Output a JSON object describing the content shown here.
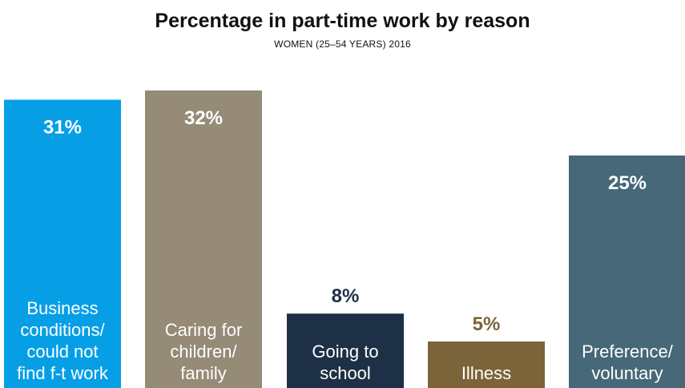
{
  "chart_data": {
    "type": "bar",
    "title": "Percentage in part-time work by reason",
    "subtitle": "WOMEN (25–54 YEARS) 2016",
    "categories": [
      [
        "Business",
        "conditions/",
        "could not",
        "find f-t work"
      ],
      [
        "Caring for",
        "children/",
        "family"
      ],
      [
        "Going to",
        "school"
      ],
      [
        "Illness"
      ],
      [
        "Preference/",
        "voluntary"
      ]
    ],
    "values": [
      31,
      32,
      8,
      5,
      25
    ],
    "value_labels": [
      "31%",
      "32%",
      "8%",
      "5%",
      "25%"
    ],
    "colors": [
      "#069fe6",
      "#958b76",
      "#1e3045",
      "#7b6439",
      "#466878"
    ],
    "value_label_colors": [
      "#ffffff",
      "#ffffff",
      "#1e3045",
      "#7b6439",
      "#ffffff"
    ],
    "ylim": [
      0,
      32
    ],
    "grid": false,
    "legend": "none"
  }
}
